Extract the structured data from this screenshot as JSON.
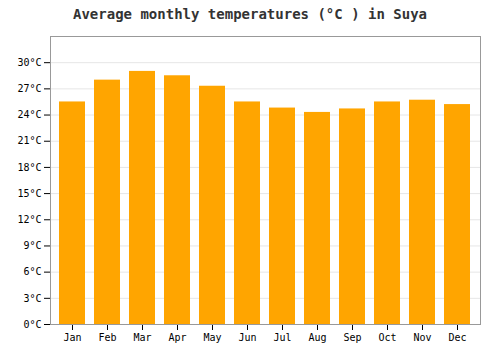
{
  "chart_data": {
    "type": "bar",
    "title": "Average monthly temperatures (°C ) in Suya",
    "categories": [
      "Jan",
      "Feb",
      "Mar",
      "Apr",
      "May",
      "Jun",
      "Jul",
      "Aug",
      "Sep",
      "Oct",
      "Nov",
      "Dec"
    ],
    "values": [
      25.5,
      28.0,
      29.0,
      28.5,
      27.3,
      25.5,
      24.8,
      24.3,
      24.7,
      25.5,
      25.7,
      25.2
    ],
    "color": "#FFA500",
    "ylim": [
      0,
      33
    ],
    "yticks": [
      {
        "value": 0,
        "label": "0°C"
      },
      {
        "value": 3,
        "label": "3°C"
      },
      {
        "value": 6,
        "label": "6°C"
      },
      {
        "value": 9,
        "label": "9°C"
      },
      {
        "value": 12,
        "label": "12°C"
      },
      {
        "value": 15,
        "label": "15°C"
      },
      {
        "value": 18,
        "label": "18°C"
      },
      {
        "value": 21,
        "label": "21°C"
      },
      {
        "value": 24,
        "label": "24°C"
      },
      {
        "value": 27,
        "label": "27°C"
      },
      {
        "value": 30,
        "label": "30°C"
      }
    ],
    "grid": true
  }
}
